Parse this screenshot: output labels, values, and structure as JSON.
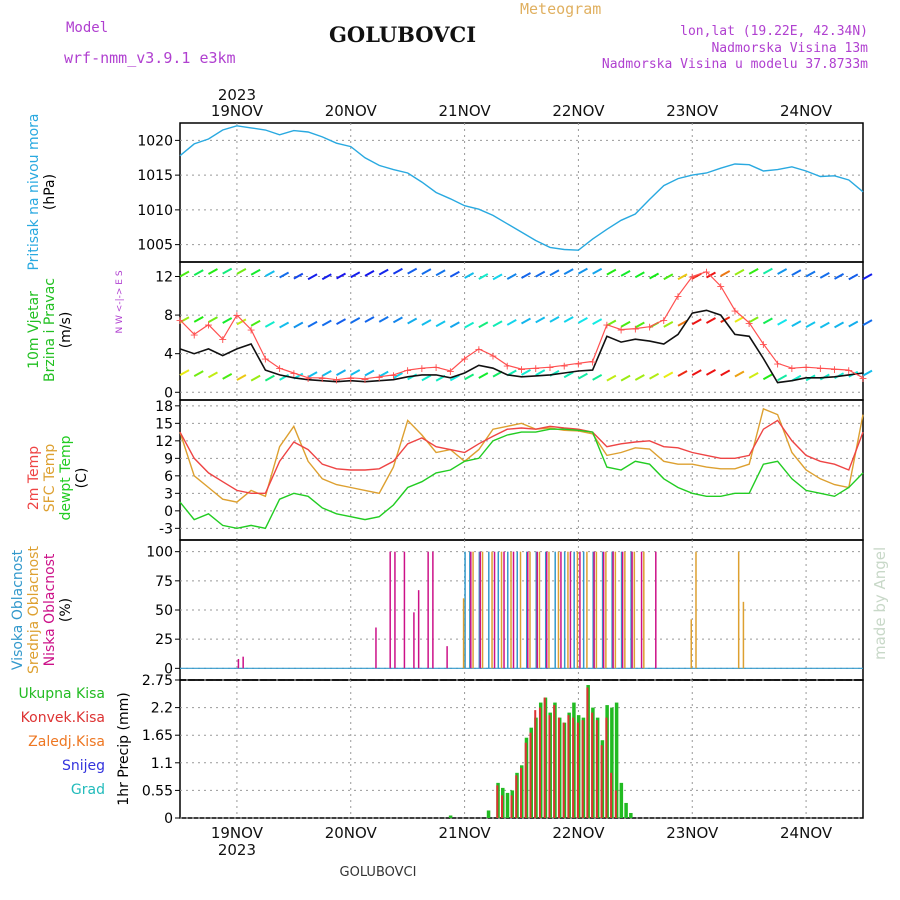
{
  "header": {
    "model_label": "Model",
    "model_name": "wrf-nmm_v3.9.1 e3km",
    "title": "GOLUBOVCI",
    "meteogram": "Meteogram",
    "lonlat": "lon,lat (19.22E, 42.34N)",
    "altitude": "Nadmorska Visina 13m",
    "model_altitude": "Nadmorska Visina u modelu 37.8733m",
    "year_top": "2023",
    "year_bottom": "2023",
    "footer": "GOLUBOVCI",
    "credit": "made by Angel"
  },
  "colors": {
    "pressure": "#29a9e0",
    "wind_title": "#22c022",
    "wind_speed": "#111111",
    "gust": "#ff5050",
    "temp2m": "#ee4444",
    "sfc": "#dda030",
    "dewpt": "#22cc22",
    "cloud_high": "#3399cc",
    "cloud_mid": "#dda030",
    "cloud_low": "#cc1188",
    "precip_total": "#22bb22",
    "precip_conv": "#dd3333",
    "precip_grid": "#ee7722",
    "snow": "#3333dd",
    "hail": "#22bbbb",
    "purple": "#b040d0"
  },
  "chart_data": {
    "type": "line",
    "x_unit": "hours from 2023-11-18 12:00 UTC",
    "xlim": [
      0,
      144
    ],
    "dates": [
      "19NOV",
      "20NOV",
      "21NOV",
      "22NOV",
      "23NOV",
      "24NOV"
    ],
    "date_hours": [
      12,
      36,
      60,
      84,
      108,
      132
    ],
    "panels": {
      "pressure": {
        "ylabel_title": "Pritisak na nivou mora",
        "ylabel_unit": "(hPa)",
        "ylim": [
          1002.5,
          1022.5
        ],
        "yticks": [
          1005,
          1010,
          1015,
          1020
        ],
        "x": [
          0,
          3,
          6,
          9,
          12,
          15,
          18,
          21,
          24,
          27,
          30,
          33,
          36,
          39,
          42,
          45,
          48,
          51,
          54,
          57,
          60,
          63,
          66,
          69,
          72,
          75,
          78,
          81,
          84,
          87,
          90,
          93,
          96,
          99,
          102,
          105,
          108,
          111,
          114,
          117,
          120,
          123,
          126,
          129,
          132,
          135,
          138,
          141,
          144
        ],
        "values": [
          1017.8,
          1019.5,
          1020.2,
          1021.5,
          1022.1,
          1021.8,
          1021.5,
          1020.8,
          1021.4,
          1021.2,
          1020.5,
          1019.6,
          1019.1,
          1017.5,
          1016.4,
          1015.8,
          1015.3,
          1014.0,
          1012.5,
          1011.6,
          1010.6,
          1010.1,
          1009.2,
          1008.0,
          1006.8,
          1005.6,
          1004.6,
          1004.3,
          1004.2,
          1005.8,
          1007.2,
          1008.5,
          1009.4,
          1011.5,
          1013.5,
          1014.5,
          1015.0,
          1015.3,
          1016.0,
          1016.6,
          1016.5,
          1015.6,
          1015.8,
          1016.2,
          1015.6,
          1014.8,
          1014.9,
          1014.3,
          1012.6
        ]
      },
      "wind": {
        "ylabel_title": "10m Vjetar",
        "ylabel_title2": "Brzina i Pravac",
        "ylabel_unit": "(m/s)",
        "compass": "N  W <-|-> E  S",
        "ylim": [
          -0.8,
          13.5
        ],
        "yticks": [
          0,
          4,
          8,
          12
        ],
        "x": [
          0,
          3,
          6,
          9,
          12,
          15,
          18,
          21,
          24,
          27,
          30,
          33,
          36,
          39,
          42,
          45,
          48,
          51,
          54,
          57,
          60,
          63,
          66,
          69,
          72,
          75,
          78,
          81,
          84,
          87,
          90,
          93,
          96,
          99,
          102,
          105,
          108,
          111,
          114,
          117,
          120,
          123,
          126,
          129,
          132,
          135,
          138,
          141,
          144
        ],
        "speed": [
          4.5,
          4.0,
          4.5,
          3.8,
          4.5,
          5.0,
          2.3,
          1.8,
          1.5,
          1.3,
          1.2,
          1.1,
          1.2,
          1.1,
          1.2,
          1.3,
          1.6,
          1.8,
          1.8,
          1.5,
          2.0,
          2.8,
          2.5,
          1.8,
          1.6,
          1.7,
          1.8,
          2.0,
          2.2,
          2.3,
          5.8,
          5.2,
          5.5,
          5.3,
          5.0,
          6.0,
          8.2,
          8.5,
          8.0,
          6.0,
          5.8,
          3.5,
          1.0,
          1.2,
          1.5,
          1.5,
          1.6,
          1.8,
          2.0
        ],
        "gust": [
          7.5,
          6.0,
          7.0,
          5.5,
          8.0,
          6.5,
          3.5,
          2.5,
          2.0,
          1.5,
          1.5,
          1.3,
          1.5,
          1.4,
          1.6,
          1.8,
          2.3,
          2.5,
          2.6,
          2.2,
          3.5,
          4.5,
          3.8,
          2.8,
          2.4,
          2.5,
          2.6,
          2.8,
          3.0,
          3.2,
          7.0,
          6.5,
          6.6,
          6.8,
          7.5,
          10.0,
          12.0,
          12.5,
          11.0,
          8.5,
          7.2,
          5.0,
          3.0,
          2.5,
          2.6,
          2.5,
          2.4,
          2.3,
          1.5
        ]
      },
      "temperature": {
        "ylabel_title": "2m Temp",
        "ylabel_title2": "SFC Temp",
        "ylabel_title3": "dewpt Temp",
        "ylabel_unit": "(C)",
        "ylim": [
          -5,
          19
        ],
        "yticks": [
          -3,
          0,
          3,
          6,
          9,
          12,
          15,
          18
        ],
        "x": [
          0,
          3,
          6,
          9,
          12,
          15,
          18,
          21,
          24,
          27,
          30,
          33,
          36,
          39,
          42,
          45,
          48,
          51,
          54,
          57,
          60,
          63,
          66,
          69,
          72,
          75,
          78,
          81,
          84,
          87,
          90,
          93,
          96,
          99,
          102,
          105,
          108,
          111,
          114,
          117,
          120,
          123,
          126,
          129,
          132,
          135,
          138,
          141,
          144
        ],
        "temp2m": [
          13.5,
          9.0,
          6.5,
          5.0,
          3.5,
          3.0,
          3.0,
          8.5,
          11.8,
          10.5,
          8.0,
          7.2,
          7.0,
          7.0,
          7.2,
          8.5,
          11.5,
          12.5,
          11.0,
          10.5,
          10.0,
          11.5,
          12.8,
          14.0,
          14.2,
          14.0,
          14.5,
          14.2,
          14.0,
          13.5,
          11.0,
          11.5,
          11.8,
          12.0,
          11.0,
          10.8,
          10.0,
          9.5,
          9.0,
          9.0,
          9.5,
          14.0,
          15.5,
          12.0,
          9.5,
          8.5,
          8.0,
          7.0,
          13.5
        ],
        "sfc": [
          13.5,
          6.0,
          4.0,
          2.0,
          1.5,
          3.5,
          2.5,
          11.0,
          14.5,
          8.5,
          5.5,
          4.5,
          4.0,
          3.5,
          3.0,
          7.5,
          15.5,
          13.0,
          10.0,
          10.5,
          8.5,
          10.5,
          14.0,
          14.5,
          15.0,
          14.0,
          14.2,
          13.8,
          13.7,
          13.2,
          9.5,
          10.0,
          10.8,
          10.6,
          8.5,
          8.0,
          8.0,
          7.5,
          7.2,
          7.2,
          8.0,
          17.5,
          16.5,
          10.0,
          7.0,
          5.5,
          4.5,
          4.0,
          16.5
        ],
        "dewpt": [
          1.5,
          -1.5,
          -0.5,
          -2.5,
          -3.0,
          -2.5,
          -3.0,
          2.0,
          3.0,
          2.5,
          0.5,
          -0.5,
          -1.0,
          -1.5,
          -1.0,
          1.0,
          4.0,
          5.0,
          6.5,
          7.0,
          8.5,
          9.0,
          12.0,
          13.0,
          13.5,
          13.5,
          14.0,
          14.0,
          13.8,
          13.5,
          7.5,
          7.0,
          8.5,
          8.0,
          5.5,
          4.0,
          3.0,
          2.5,
          2.5,
          3.0,
          3.0,
          8.0,
          8.5,
          5.5,
          3.5,
          3.0,
          2.5,
          4.0,
          6.5
        ]
      },
      "clouds": {
        "ylabel_title": "Visoka Oblacnost",
        "ylabel_title2": "Srednja Oblacnost",
        "ylabel_title3": "Niska Oblacnost",
        "ylabel_unit": "(%)",
        "ylim": [
          0,
          100
        ],
        "yticks": [
          0,
          25,
          50,
          75,
          100
        ],
        "high": [
          [
            60,
            100
          ],
          [
            61,
            100
          ],
          [
            63,
            100
          ],
          [
            65,
            100
          ],
          [
            67,
            100
          ],
          [
            69,
            100
          ],
          [
            71,
            100
          ],
          [
            73,
            100
          ],
          [
            75,
            100
          ],
          [
            77,
            100
          ],
          [
            79,
            100
          ],
          [
            81,
            100
          ],
          [
            83,
            100
          ],
          [
            85,
            100
          ],
          [
            87,
            100
          ],
          [
            89,
            100
          ],
          [
            91,
            100
          ],
          [
            93,
            100
          ],
          [
            95,
            100
          ]
        ],
        "mid": [
          [
            60,
            60
          ],
          [
            62,
            100
          ],
          [
            64,
            100
          ],
          [
            66,
            100
          ],
          [
            68,
            100
          ],
          [
            70,
            100
          ],
          [
            72,
            100
          ],
          [
            74,
            100
          ],
          [
            76,
            100
          ],
          [
            78,
            100
          ],
          [
            80,
            100
          ],
          [
            82,
            100
          ],
          [
            84,
            100
          ],
          [
            86,
            100
          ],
          [
            88,
            100
          ],
          [
            90,
            100
          ],
          [
            92,
            100
          ],
          [
            94,
            100
          ],
          [
            96,
            100
          ],
          [
            98,
            100
          ],
          [
            108,
            42
          ],
          [
            109,
            100
          ],
          [
            118,
            100
          ],
          [
            119,
            57
          ]
        ],
        "low": [
          [
            12,
            8
          ],
          [
            13,
            10
          ],
          [
            41,
            35
          ],
          [
            44,
            100
          ],
          [
            45,
            100
          ],
          [
            47,
            100
          ],
          [
            49,
            48
          ],
          [
            50,
            67
          ],
          [
            52,
            100
          ],
          [
            53,
            100
          ],
          [
            56,
            19
          ],
          [
            61,
            100
          ],
          [
            63,
            100
          ],
          [
            66,
            100
          ],
          [
            68,
            100
          ],
          [
            70,
            100
          ],
          [
            73,
            100
          ],
          [
            75,
            100
          ],
          [
            77,
            100
          ],
          [
            80,
            100
          ],
          [
            82,
            100
          ],
          [
            84,
            100
          ],
          [
            87,
            100
          ],
          [
            89,
            100
          ],
          [
            91,
            100
          ],
          [
            93,
            100
          ],
          [
            95,
            100
          ],
          [
            97,
            100
          ],
          [
            100,
            100
          ]
        ]
      },
      "precip": {
        "ylabel_title": "Ukupna Kisa",
        "ylabel_title2": "Konvek.Kisa",
        "ylabel_title3": "Zaledj.Kisa",
        "ylabel_title4": "Snijeg",
        "ylabel_title5": "Grad",
        "ylabel_unit": "1hr Precip (mm)",
        "ylim": [
          0,
          2.75
        ],
        "yticks": [
          0,
          0.55,
          1.1,
          1.65,
          2.2,
          2.75
        ],
        "ytick_labels": [
          "0",
          "0.55",
          "1.1",
          "1.65",
          "2.2",
          "2.75"
        ],
        "total": [
          [
            57,
            0.05
          ],
          [
            65,
            0.15
          ],
          [
            67,
            0.7
          ],
          [
            68,
            0.6
          ],
          [
            69,
            0.5
          ],
          [
            70,
            0.55
          ],
          [
            71,
            0.9
          ],
          [
            72,
            1.05
          ],
          [
            73,
            1.6
          ],
          [
            74,
            1.8
          ],
          [
            75,
            2.0
          ],
          [
            76,
            2.3
          ],
          [
            77,
            2.4
          ],
          [
            78,
            2.1
          ],
          [
            79,
            2.3
          ],
          [
            80,
            2.0
          ],
          [
            81,
            1.9
          ],
          [
            82,
            2.1
          ],
          [
            83,
            2.3
          ],
          [
            84,
            2.05
          ],
          [
            85,
            2.0
          ],
          [
            86,
            2.65
          ],
          [
            87,
            2.2
          ],
          [
            88,
            2.0
          ],
          [
            89,
            1.55
          ],
          [
            90,
            2.25
          ],
          [
            91,
            2.2
          ],
          [
            92,
            2.3
          ],
          [
            93,
            0.7
          ],
          [
            94,
            0.3
          ],
          [
            95,
            0.1
          ]
        ],
        "conv": [
          [
            67,
            0.65
          ],
          [
            68,
            0.45
          ],
          [
            70,
            0.45
          ],
          [
            71,
            0.85
          ],
          [
            72,
            1.0
          ],
          [
            73,
            1.5
          ],
          [
            74,
            1.7
          ],
          [
            75,
            2.15
          ],
          [
            76,
            2.2
          ],
          [
            77,
            2.4
          ],
          [
            78,
            2.05
          ],
          [
            79,
            2.25
          ],
          [
            80,
            2.0
          ],
          [
            81,
            1.9
          ],
          [
            82,
            2.05
          ],
          [
            83,
            2.0
          ],
          [
            84,
            1.9
          ],
          [
            85,
            1.95
          ],
          [
            86,
            2.6
          ],
          [
            87,
            2.1
          ],
          [
            88,
            1.95
          ],
          [
            89,
            1.45
          ],
          [
            90,
            2.0
          ],
          [
            91,
            0.9
          ],
          [
            92,
            0.55
          ]
        ]
      }
    }
  }
}
